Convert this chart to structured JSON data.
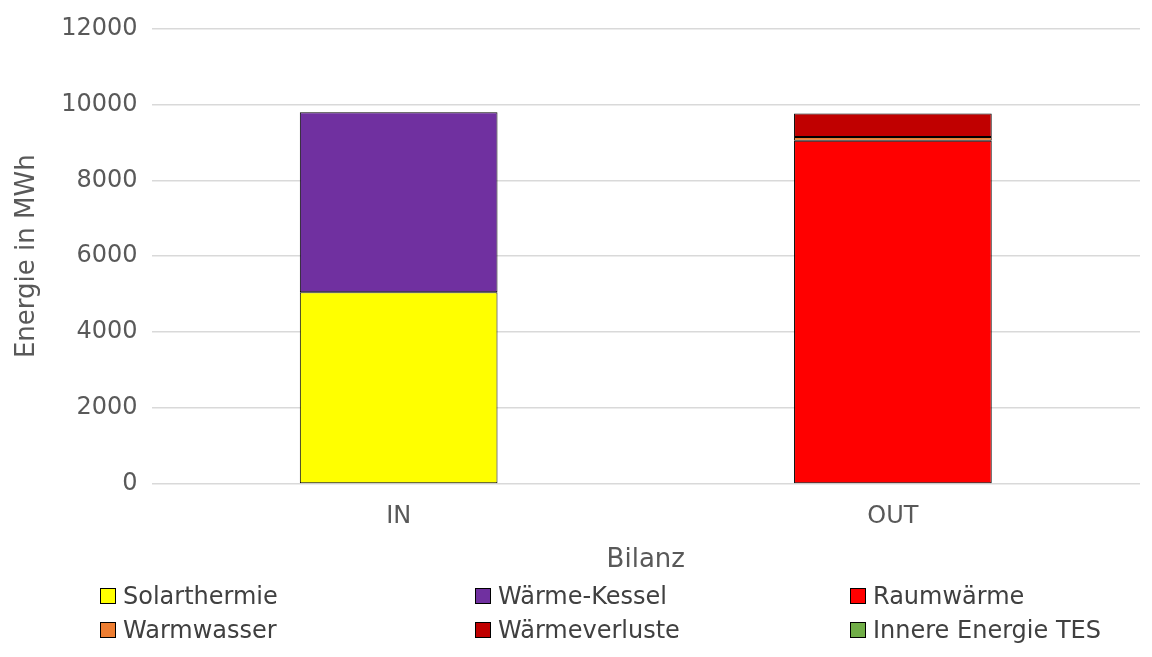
{
  "chart_data": {
    "type": "bar",
    "stacked": true,
    "xlabel": "Bilanz",
    "ylabel": "Energie in MWh",
    "categories": [
      "IN",
      "OUT"
    ],
    "series": [
      {
        "name": "Solarthermie",
        "color": "#ffff00",
        "values": [
          5050,
          null
        ]
      },
      {
        "name": "Wärme-Kessel",
        "color": "#7030a0",
        "values": [
          4740,
          null
        ]
      },
      {
        "name": "Raumwärme",
        "color": "#ff0000",
        "values": [
          null,
          9040
        ]
      },
      {
        "name": "Warmwasser",
        "color": "#ed7d31",
        "values": [
          null,
          100
        ]
      },
      {
        "name": "Wärmeverluste",
        "color": "#c00000",
        "values": [
          null,
          620
        ]
      },
      {
        "name": "Innere Energie TES",
        "color": "#70ad47",
        "values": [
          null,
          0
        ]
      }
    ],
    "ylim": [
      0,
      12000
    ],
    "yticks": [
      0,
      2000,
      4000,
      6000,
      8000,
      10000,
      12000
    ],
    "grid": "y",
    "legend": "bottom"
  }
}
